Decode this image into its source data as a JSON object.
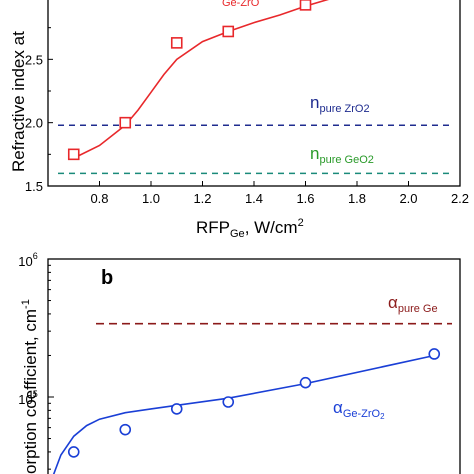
{
  "colors": {
    "refractive_series": "#e8282b",
    "zro2_line": "#1f2c8f",
    "geo2_line": "#1a8a7a",
    "geo2_label": "#2a9a2a",
    "absorption_series": "#1a3fd6",
    "pure_ge_line": "#8b1a1a"
  },
  "chart_data": [
    {
      "type": "scatter",
      "panel": "a",
      "ylabel": "Refractive index at",
      "xlabel_main": "RFP",
      "xlabel_sub": "Ge",
      "xlabel_unit": ", W/cm",
      "xlabel_sup": "2",
      "xlim": [
        0.6,
        2.2
      ],
      "ylim": [
        1.5,
        3.0
      ],
      "xticks": [
        "0.8",
        "1.0",
        "1.2",
        "1.4",
        "1.6",
        "1.8",
        "2.0",
        "2.2"
      ],
      "xtick_values": [
        0.8,
        1.0,
        1.2,
        1.4,
        1.6,
        1.8,
        2.0,
        2.2
      ],
      "yticks": [
        "1.5",
        "2.0",
        "2.5"
      ],
      "ytick_values": [
        1.5,
        2.0,
        2.5
      ],
      "series": [
        {
          "marker": "square",
          "x": [
            0.7,
            0.9,
            1.1,
            1.3,
            1.6
          ],
          "y": [
            1.75,
            2.0,
            2.63,
            2.72,
            2.93
          ]
        }
      ],
      "fit_curve": {
        "x": [
          0.7,
          0.8,
          0.9,
          0.95,
          1.0,
          1.05,
          1.1,
          1.2,
          1.3,
          1.4,
          1.5,
          1.6,
          1.7
        ],
        "y": [
          1.72,
          1.82,
          1.98,
          2.1,
          2.24,
          2.38,
          2.5,
          2.64,
          2.72,
          2.79,
          2.85,
          2.92,
          2.98
        ]
      },
      "reference_lines": [
        {
          "y": 1.98,
          "label_main": "n",
          "label_sub": "pure ZrO2"
        },
        {
          "y": 1.6,
          "label_main": "n",
          "label_sub": "pure GeO2"
        }
      ],
      "series_label_partial": "Ge-ZrO"
    },
    {
      "type": "scatter",
      "panel": "b",
      "panel_label": "b",
      "ylabel": "orption coefficient, cm",
      "ylabel_sup": "-1",
      "log_y": true,
      "xlim": [
        0.6,
        2.2
      ],
      "ylim_exponents": [
        4.4,
        6.0
      ],
      "yticks_base": "10",
      "yticks_exp": [
        "6",
        "5"
      ],
      "ytick_values": [
        1000000,
        100000
      ],
      "series": [
        {
          "marker": "circle",
          "x": [
            0.7,
            0.9,
            1.1,
            1.3,
            1.6,
            2.1
          ],
          "y": [
            40000,
            58000,
            82000,
            92000,
            127000,
            205000
          ]
        }
      ],
      "fit_curve": {
        "x": [
          0.62,
          0.65,
          0.7,
          0.75,
          0.8,
          0.9,
          1.0,
          1.1,
          1.3,
          1.6,
          2.1
        ],
        "y": [
          27000,
          38000,
          52000,
          62000,
          69000,
          77000,
          82000,
          87000,
          98000,
          125000,
          200000
        ]
      },
      "reference_lines": [
        {
          "y": 340000,
          "label_main": "α",
          "label_sub": "pure Ge"
        }
      ],
      "series_label": {
        "main": "α",
        "sub": "Ge-ZrO",
        "sub2": "2"
      }
    }
  ]
}
